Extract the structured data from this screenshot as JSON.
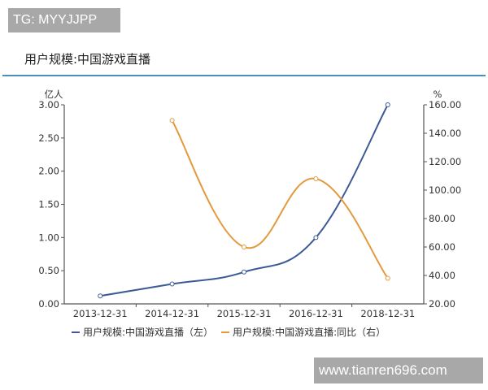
{
  "watermarks": {
    "top_left": "TG: MYYJJPP",
    "bottom_right": "www.tianren696.com"
  },
  "header": {
    "title": "用户规模:中国游戏直播",
    "rule_color": "#4a8fb7"
  },
  "colors": {
    "series_left": "#3c5a96",
    "series_right": "#e39a3e"
  },
  "chart_data": {
    "type": "line",
    "title": "用户规模:中国游戏直播",
    "categories": [
      "2013-12-31",
      "2014-12-31",
      "2015-12-31",
      "2016-12-31",
      "2018-12-31"
    ],
    "series": [
      {
        "name": "用户规模:中国游戏直播（左）",
        "axis": "left",
        "color": "#3c5a96",
        "values": [
          0.12,
          0.3,
          0.48,
          1.0,
          3.0
        ]
      },
      {
        "name": "用户规模:中国游戏直播:同比（右）",
        "axis": "right",
        "color": "#e39a3e",
        "values": [
          null,
          149.0,
          60.0,
          108.0,
          38.0
        ]
      }
    ],
    "y_left": {
      "label": "亿人",
      "range": [
        0,
        3
      ],
      "ticks": [
        "3.00",
        "2.50",
        "2.00",
        "1.50",
        "1.00",
        "0.50",
        "0.00"
      ]
    },
    "y_right": {
      "label": "%",
      "range": [
        20,
        160
      ],
      "ticks": [
        "160.00",
        "140.00",
        "120.00",
        "100.00",
        "80.00",
        "60.00",
        "40.00",
        "20.00"
      ]
    },
    "xlabel": "",
    "grid": false,
    "legend_position": "bottom",
    "smooth": true
  },
  "legend": {
    "left_label": "用户规模:中国游戏直播（左）",
    "right_label": "用户规模:中国游戏直播:同比（右）"
  }
}
